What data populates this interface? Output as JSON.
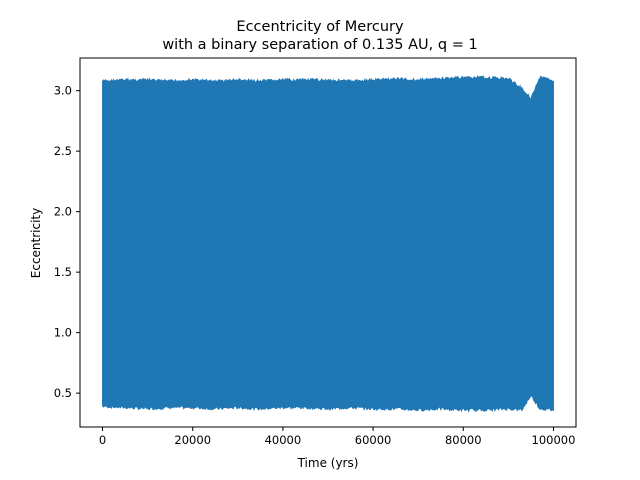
{
  "chart_data": {
    "type": "line",
    "title": "Eccentricity of Mercury",
    "subtitle": "with a binary separation of 0.135 AU, q = 1",
    "xlabel": "Time (yrs)",
    "ylabel": "Eccentricity",
    "xlim": [
      -5000,
      105000
    ],
    "ylim": [
      0.22,
      3.27
    ],
    "xticks": [
      0,
      20000,
      40000,
      60000,
      80000,
      100000
    ],
    "xtick_labels": [
      "0",
      "20000",
      "40000",
      "60000",
      "80000",
      "100000"
    ],
    "yticks": [
      0.5,
      1.0,
      1.5,
      2.0,
      2.5,
      3.0
    ],
    "ytick_labels": [
      "0.5",
      "1.0",
      "1.5",
      "2.0",
      "2.5",
      "3.0"
    ],
    "grid": false,
    "series": [
      {
        "color": "#1f77b4",
        "envelope_x": [
          0,
          5000,
          10000,
          15000,
          20000,
          25000,
          30000,
          35000,
          40000,
          45000,
          50000,
          55000,
          60000,
          65000,
          70000,
          75000,
          80000,
          85000,
          90000,
          93000,
          95000,
          97000,
          100000
        ],
        "upper": [
          3.09,
          3.1,
          3.1,
          3.09,
          3.1,
          3.09,
          3.1,
          3.09,
          3.1,
          3.1,
          3.1,
          3.09,
          3.1,
          3.11,
          3.1,
          3.11,
          3.12,
          3.12,
          3.11,
          3.03,
          2.95,
          3.12,
          3.1
        ],
        "lower": [
          0.38,
          0.37,
          0.36,
          0.37,
          0.37,
          0.36,
          0.37,
          0.36,
          0.37,
          0.37,
          0.36,
          0.37,
          0.36,
          0.36,
          0.35,
          0.36,
          0.35,
          0.35,
          0.36,
          0.35,
          0.47,
          0.36,
          0.35
        ]
      }
    ]
  }
}
